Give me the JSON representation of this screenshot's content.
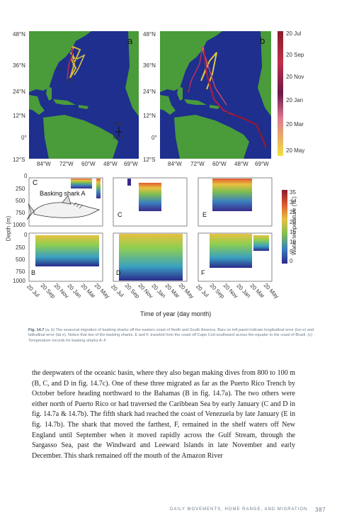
{
  "figure": {
    "map_lat_labels": [
      "48°N",
      "36°N",
      "24°N",
      "12°N",
      "0°",
      "12°S"
    ],
    "map_lon_labels": [
      "84°W",
      "72°W",
      "60°W",
      "48°W",
      "69°W"
    ],
    "panel_a": "a",
    "panel_b": "b",
    "legend_late": "lat e",
    "legend_lone": "lon e",
    "track_letters": [
      "A",
      "B",
      "C",
      "D",
      "E",
      "F"
    ],
    "date_colorbar": [
      "20 Jul",
      "20 Sep",
      "20 Nov",
      "20 Jan",
      "20 Mar",
      "20 May"
    ],
    "temp_colorbar": [
      "35",
      "30",
      "25",
      "20",
      "15",
      "10",
      "5",
      "0"
    ],
    "temp_axis_label": "Water temperature (°C)",
    "depth_axis_label": "Depth (m)",
    "depth_ticks": [
      "0",
      "250",
      "500",
      "750",
      "1000"
    ],
    "depth_ticks_lower": [
      "0",
      "250",
      "500",
      "750",
      "1000"
    ],
    "shark_label": "Basking shark A",
    "depth_panel_letters": [
      "C",
      "C",
      "E",
      "B",
      "D",
      "F"
    ],
    "time_ticks": [
      "20 Jul",
      "20 Sep",
      "20 Nov",
      "20 Jan",
      "20 Mar",
      "20 May"
    ],
    "time_axis_label": "Time of year (day month)"
  },
  "caption": {
    "label": "Fig. 14.7",
    "text": "(a, b) The seasonal migration of basking sharks off the eastern coast of North and South America. Bars on left panel indicate longitudinal error (lon e) and latitudinal error (lat e). Notice that two of the basking sharks, E and F, traveled from the coast off Cape Cod southward across the equator to the coast of Brazil. (c) Temperature records for basking sharks A–F."
  },
  "body": {
    "paragraph": "the deepwaters of the oceanic basin, where they also began making dives from 800 to 100 m (B, C, and D in fig. 14.7c). One of these three migrated as far as the Puerto Rico Trench by October before heading northward to the Bahamas (B in fig. 14.7a). The two others were either north of Puerto Rico or had traversed the Caribbean Sea by early January (C and D in fig. 14.7a & 14.7b). The fifth shark had reached the coast of Venezuela by late January (E in fig. 14.7b). The shark that moved the farthest, F, remained in the shelf waters off New England until September when it moved rapidly across the Gulf Stream, through the Sargasso Sea, past the Windward and Leeward Islands in late November and early December. This shark remained off the mouth of the Amazon River"
  },
  "footer": {
    "running_head": "DAILY MOVEMENTS, HOME RANGE, AND MIGRATION",
    "page_number": "387"
  }
}
